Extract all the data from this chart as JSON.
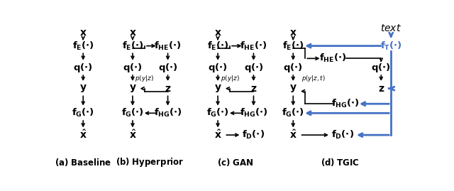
{
  "bg_color": "#ffffff",
  "black": "#000000",
  "blue": "#4472c4",
  "fig_width": 6.4,
  "fig_height": 2.69
}
